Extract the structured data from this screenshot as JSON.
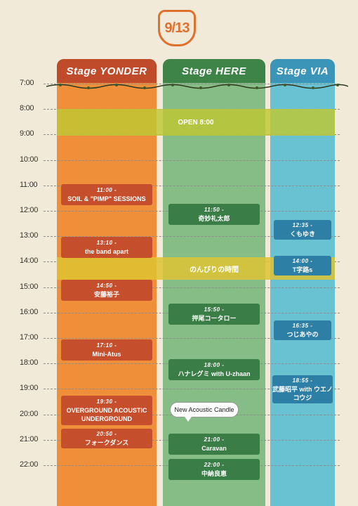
{
  "date": "9/13",
  "stages": [
    {
      "label": "Stage YONDER"
    },
    {
      "label": "Stage HERE"
    },
    {
      "label": "Stage VIA"
    }
  ],
  "hours": [
    "7:00",
    "8:00",
    "9:00",
    "10:00",
    "11:00",
    "12:00",
    "13:00",
    "14:00",
    "15:00",
    "16:00",
    "17:00",
    "18:00",
    "19:00",
    "20:00",
    "21:00",
    "22:00"
  ],
  "bands": {
    "open": "OPEN 8:00",
    "nonbiri": "のんびりの時間"
  },
  "bubble": "New Acoustic Candle",
  "yonder": [
    {
      "time": "11:00 -",
      "name": "SOIL & \"PIMP\" SESSIONS"
    },
    {
      "time": "13:10 -",
      "name": "the band apart"
    },
    {
      "time": "14:50 -",
      "name": "安藤裕子"
    },
    {
      "time": "17:10 -",
      "name": "Mini-Atus"
    },
    {
      "time": "19:30 -",
      "name": "OVERGROUND ACOUSTIC UNDERGROUND"
    },
    {
      "time": "20:50 -",
      "name": "フォークダンス"
    }
  ],
  "here": [
    {
      "time": "11:50 -",
      "name": "奇妙礼太郎"
    },
    {
      "time": "15:50 -",
      "name": "押尾コータロー"
    },
    {
      "time": "18:00 -",
      "name": "ハナレグミ with U-zhaan"
    },
    {
      "time": "21:00 -",
      "name": "Caravan"
    },
    {
      "time": "22:00 -",
      "name": "中納良恵"
    }
  ],
  "via": [
    {
      "time": "12:35 -",
      "name": "くもゆき"
    },
    {
      "time": "14:00 -",
      "name": "T字路s"
    },
    {
      "time": "16:35 -",
      "name": "つじあやの"
    },
    {
      "time": "18:55 -",
      "name": "武藤昭平 with ウエノコウジ"
    }
  ]
}
